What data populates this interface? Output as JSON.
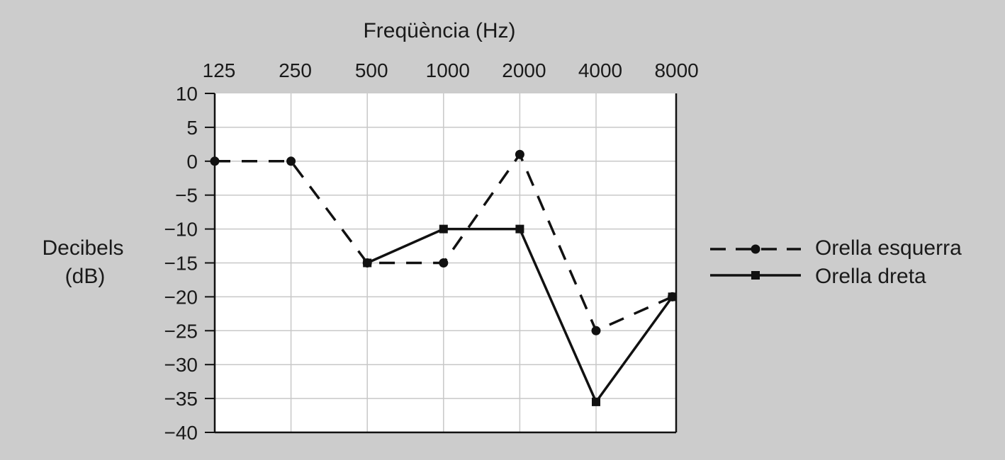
{
  "colors": {
    "background": "#cccccc",
    "plot_area": "#ffffff",
    "grid": "#c8c8c8",
    "ink": "#111111"
  },
  "chart_data": {
    "type": "line",
    "xlabel": "Freqüència (Hz)",
    "ylabel_lines": [
      "Decibels",
      "(dB)"
    ],
    "x_axis_position": "top",
    "categories": [
      "125",
      "250",
      "500",
      "1000",
      "2000",
      "4000",
      "8000"
    ],
    "y_ticks": [
      10,
      5,
      0,
      -5,
      -10,
      -15,
      -20,
      -25,
      -30,
      -35,
      -40
    ],
    "ylim": [
      -40,
      10
    ],
    "grid": true,
    "legend_position": "right",
    "series": [
      {
        "name": "Orella esquerra",
        "style": "dashed",
        "marker": "circle",
        "x": [
          "125",
          "250",
          "500",
          "1000",
          "2000",
          "4000",
          "8000"
        ],
        "values": [
          0,
          0,
          -15,
          -15,
          1,
          -25,
          -20
        ]
      },
      {
        "name": "Orella dreta",
        "style": "solid",
        "marker": "square",
        "x": [
          "500",
          "1000",
          "2000",
          "4000",
          "8000"
        ],
        "values": [
          -15,
          -10,
          -10,
          -35.5,
          -20
        ]
      }
    ]
  }
}
